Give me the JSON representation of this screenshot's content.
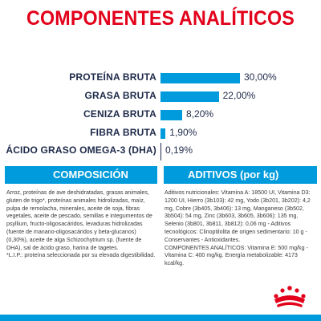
{
  "title": "COMPONENTES ANALÍTICOS",
  "analytics": [
    {
      "label": "PROTEÍNA BRUTA",
      "value": "30,00%",
      "percent": 30.0
    },
    {
      "label": "GRASA BRUTA",
      "value": "22,00%",
      "percent": 22.0
    },
    {
      "label": "CENIZA BRUTA",
      "value": "8,20%",
      "percent": 8.2
    },
    {
      "label": "FIBRA BRUTA",
      "value": "1,90%",
      "percent": 1.9
    },
    {
      "label": "ÁCIDO GRASO OMEGA-3 (DHA)",
      "value": "0,19%",
      "percent": 0.19
    }
  ],
  "composition": {
    "header": "COMPOSICIÓN",
    "text": "Arroz, proteínas de ave deshidratadas, grasas animales, gluten de trigo*, proteínas animales hidrolizadas, maíz, pulpa de remolacha, minerales, aceite de soja, fibras vegetales, aceite de pescado, semillas e integumentos de psyllium, fructo-oligosacáridos, levaduras hidrolizadas (fuente de manano-oligosacáridos y beta-glucanos) (0,30%), aceite de alga Schizochytrium sp. (fuente de DHA), sal de ácido graso, harina de tagetes.",
    "footnote": "*L.I.P.: proteína seleccionada por su elevada digestibilidad."
  },
  "additives": {
    "header": "ADITIVOS (por kg)",
    "text": "Aditivos nutricionales: Vitamina A: 18500 UI, Vitamina D3: 1200 UI, Hierro (3b103): 42 mg, Yodo (3b201, 3b202): 4,2 mg, Cobre (3b405, 3b406): 13 mg, Manganeso (3b502, 3b504): 54 mg, Zinc (3b603, 3b605, 3b606): 135 mg, Selenio (3b801, 3b811, 3b812): 0,06 mg - Aditivos tecnológicos: Clinoptilolita de origen sedimentario: 10 g - Conservantes - Antioxidantes.",
    "text2": "COMPONENTES ANALÍTICOS: Vitamina E: 500 mg/kg - Vitamina C: 400 mg/kg. Energía metabolizable: 4173 kcal/kg."
  },
  "colors": {
    "accent_red": "#e2001a",
    "accent_blue": "#009bdc",
    "label_navy": "#1e2a4a"
  },
  "logo_icon": "royal-canin-crown-icon"
}
